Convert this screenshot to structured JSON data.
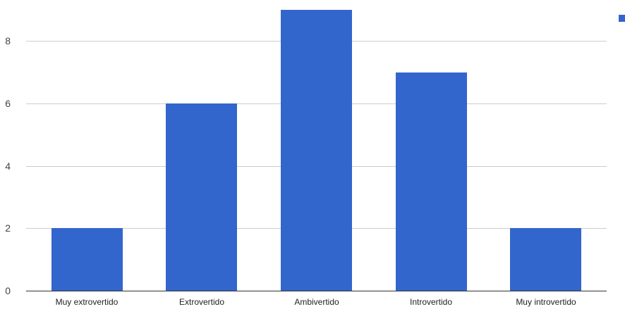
{
  "chart_data": {
    "type": "bar",
    "title": "",
    "xlabel": "",
    "ylabel": "",
    "categories": [
      "Muy extrovertido",
      "Extrovertido",
      "Ambivertido",
      "Introvertido",
      "Muy introvertido"
    ],
    "series": [
      {
        "values": [
          2,
          6,
          9,
          7,
          2
        ]
      }
    ],
    "ylim": [
      0,
      9
    ],
    "y_ticks": [
      "0",
      "2",
      "4",
      "6",
      "8"
    ],
    "grid": true,
    "legend": "right",
    "colors": {
      "bar": "#3366cc",
      "grid": "#cccccc",
      "axis": "#333333"
    }
  }
}
